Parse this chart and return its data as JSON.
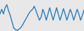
{
  "line_color": "#2b7bba",
  "background_color": "#e8e8e8",
  "linewidth": 1.0,
  "y_values": [
    55,
    70,
    55,
    75,
    85,
    65,
    50,
    30,
    10,
    5,
    2,
    5,
    10,
    18,
    28,
    38,
    48,
    58,
    65,
    70,
    80,
    65,
    50,
    35,
    45,
    70,
    55,
    35,
    55,
    75,
    55,
    35,
    55,
    75,
    55,
    35,
    52,
    72,
    55,
    35,
    52,
    70,
    55,
    35,
    52,
    70,
    55,
    35,
    50,
    68
  ]
}
